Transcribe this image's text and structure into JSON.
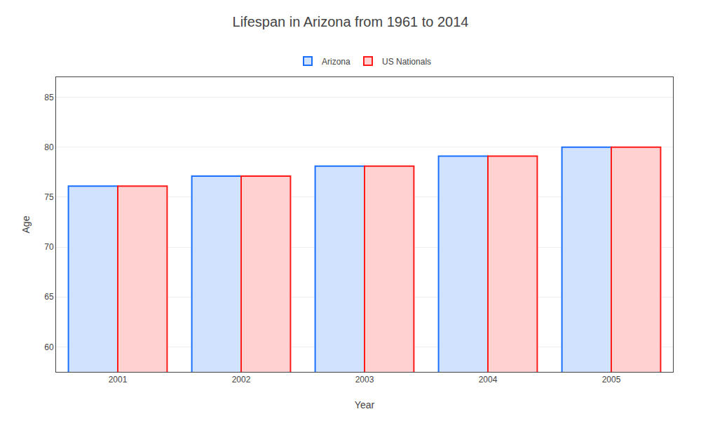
{
  "chart_data": {
    "type": "bar",
    "title": "Lifespan in Arizona from 1961 to 2014",
    "xlabel": "Year",
    "ylabel": "Age",
    "categories": [
      "2001",
      "2002",
      "2003",
      "2004",
      "2005"
    ],
    "series": [
      {
        "name": "Arizona",
        "color": "#1a6fff",
        "values": [
          76.1,
          77.1,
          78.1,
          79.1,
          80.0
        ]
      },
      {
        "name": "US Nationals",
        "color": "#ff1a1a",
        "values": [
          76.1,
          77.1,
          78.1,
          79.1,
          80.0
        ]
      }
    ],
    "ylim": [
      57.5,
      87
    ],
    "yticks": [
      60,
      65,
      70,
      75,
      80,
      85
    ],
    "grid": true,
    "legend": "top"
  }
}
